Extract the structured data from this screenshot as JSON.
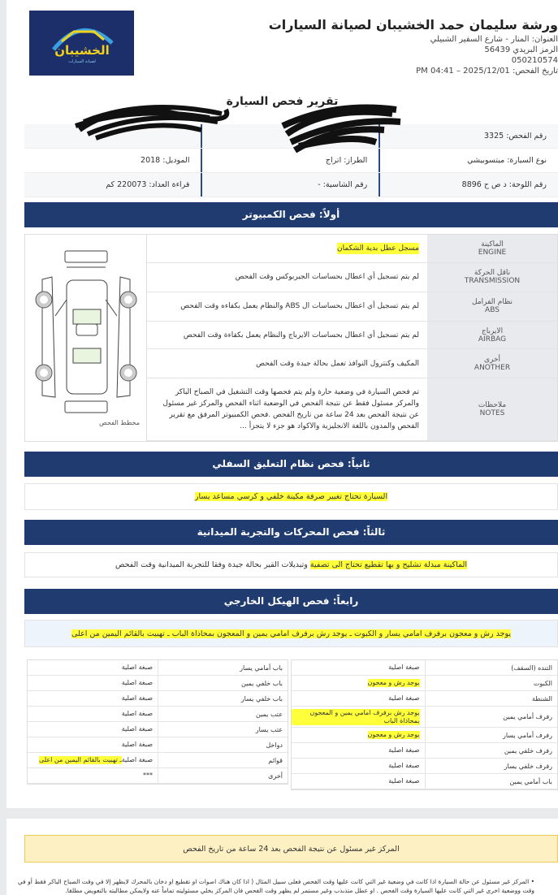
{
  "header": {
    "logo_text": "الخشيبان",
    "logo_subtext": "لصيانة السيارات",
    "workshop_name": "ورشة سليمان حمد الخشيبان لصيانة السيارات",
    "address": "العنوان: المنار - شارع السفير الشبيلي",
    "postal": "الرمز البريدي 56439",
    "phone": "050210574",
    "inspection_date": "تاريخ الفحص: 2025/12/01 – 04:41 PM"
  },
  "report_title": "تقرير فحص السيارة",
  "info": [
    [
      "رقم الفحص: 3325",
      "",
      ""
    ],
    [
      "نوع السيارة: ميتسوبيشي",
      "الطراز: اتراج",
      "الموديل: 2018"
    ],
    [
      "رقم اللوحة: د ص ح 8896",
      "رقم الشاسية: -",
      "قراءة العداد: 220073 كم"
    ]
  ],
  "section1": {
    "title": "أولاً: فحص الكمبيوتر",
    "diagram_caption": "مخطط الفحص",
    "rows": [
      {
        "ar": "الماكينة",
        "en": "ENGINE",
        "value": "مسجل عطل بدية الشكمان",
        "highlight": true
      },
      {
        "ar": "ناقل الحركة",
        "en": "TRANSMISSION",
        "value": "لم يتم تسجيل أي اعطال بحساسات الجيربوكس وقت الفحص",
        "highlight": false
      },
      {
        "ar": "نظام الفرامل",
        "en": "ABS",
        "value": "لم يتم تسجيل أي اعطال بحساسات ال ABS والنظام يعمل بكفاءه وقت الفحص",
        "highlight": false
      },
      {
        "ar": "الايرباج",
        "en": "AIRBAG",
        "value": "لم يتم تسجيل أي اعطال بحساسات الايرباج والنظام يعمل بكفاءة وقت الفحص",
        "highlight": false
      },
      {
        "ar": "أخرى",
        "en": "ANOTHER",
        "value": "المكيف وكنترول النوافذ تعمل بحالة جيدة وقت الفحص",
        "highlight": false
      },
      {
        "ar": "ملاحظات",
        "en": "NOTES",
        "value": "تم فحص السيارة في وضعية حارة ولم يتم فحصها وقت التشغيل في الصباح الباكر والمركز مسئول فقط عن نتيجة الفحص في الوضعية اثناء الفحص والمركز غير مسئول عن نتيجة الفحص بعد 24 ساعة من تاريخ الفحص .فحص الكمبيوتر المرفق مع تقرير الفحص والمدون باللغة الانجليزية والاكواد هو جزء لا يتجزأ ...",
        "highlight": false
      }
    ]
  },
  "section2": {
    "title": "ثانياً: فحص نظام التعليق السفلي",
    "text": "السيارة تحتاج تغيير صرفة مكينة خلفي  و كرسي مساعد يسار"
  },
  "section3": {
    "title": "ثالثاً: فحص المحركات والتجربة الميدانية",
    "text_highlight": "الماكينة مبدلة تشليح  و بها تقطيع تحتاج الى تصفية",
    "text_rest": "وتبديلات القير بحالة جيدة وفقا للتجربة الميدانية وقت الفحص"
  },
  "section4": {
    "title": "رابعاً: فحص الهيكل الخارجي",
    "summary": "يوجد رش و معجون برفرف امامي يسار و الكبوت ـ يوجد رش برفرف امامي يمين و المعجون بمحاذاة الباب ـ تهبيت بالقائم اليمين من اعلى",
    "right_table": [
      {
        "part": "التنده (السقف)",
        "status": "صبغة اصلية",
        "highlight": false
      },
      {
        "part": "الكبوت",
        "status": "يوجد رش و معجون",
        "highlight": true
      },
      {
        "part": "الشنطة",
        "status": "صبغة اصلية",
        "highlight": false
      },
      {
        "part": "رفرف أمامي يمين",
        "status": "يوجد رش برفرف امامي يمين و المعجون بمحاذاة الباب",
        "highlight": true
      },
      {
        "part": "رفرف أمامي يسار",
        "status": "يوجد رش و معجون",
        "highlight": true
      },
      {
        "part": "رفرف خلفي يمين",
        "status": "صبغة اصلية",
        "highlight": false
      },
      {
        "part": "رفرف خلفي يسار",
        "status": "صبغة اصلية",
        "highlight": false
      },
      {
        "part": "باب أمامي يمين",
        "status": "صبغة اصلية",
        "highlight": false
      }
    ],
    "left_table": [
      {
        "part": "باب أمامي يسار",
        "status": "صبغة اصلية",
        "extra": ""
      },
      {
        "part": "باب خلفي يمين",
        "status": "صبغة اصلية",
        "extra": ""
      },
      {
        "part": "باب خلفي يسار",
        "status": "صبغة اصلية",
        "extra": ""
      },
      {
        "part": "عتب يمين",
        "status": "صبغة اصلية",
        "extra": ""
      },
      {
        "part": "عتب يسار",
        "status": "صبغة اصلية",
        "extra": ""
      },
      {
        "part": "دواخل",
        "status": "صبغة اصلية",
        "extra": ""
      },
      {
        "part": "قوائم",
        "status": "صبغة اصلية",
        "extra": "ـ تهبيت بالقائم اليمين من اعلى"
      },
      {
        "part": "أخرى",
        "status": "***",
        "extra": ""
      }
    ]
  },
  "page2": {
    "warning": "المركز غير مسئول عن نتيجة الفحص بعد 24 ساعة من تاريخ الفحص",
    "bullet": "المركز غير مسئول عن حالة السيارة اذا كانت في وضعية غير التي كانت عليها وقت الفحص فعلى سبيل المثال ( اذا كان هناك اصوات او تقطيع او دخان بالمحرك لايظهر إلا في وقت الصباح الباكر فقط أو في وقت ووضعية اخرى غير التي كانت عليها السيارة وقت الفحص . او عطل متذبذب وغير مستمر لم يظهر وقت الفحص فان المركز يخلي مسئوليته تماماً عنه ولايمكن مطالبته بالتعويض مطلقا."
  },
  "colors": {
    "bar": "#1f3b70",
    "highlight": "#ffff3a",
    "warning_bg": "#fdf0c2"
  }
}
